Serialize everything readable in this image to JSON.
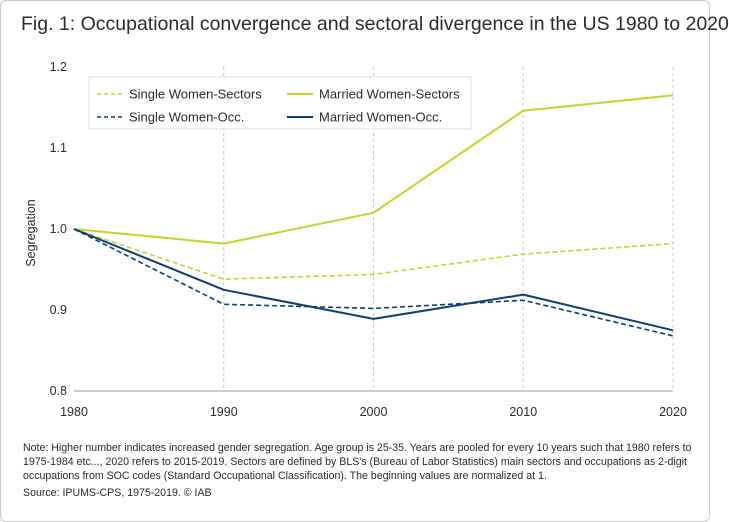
{
  "title": "Fig. 1: Occupational convergence and sectoral divergence in the US 1980 to 2020",
  "note": "Note: Higher number indicates increased gender segregation. Age group is 25-35. Years are pooled for every 10 years such that 1980 refers to 1975-1984 etc..., 2020 refers to 2015-2019. Sectors are defined by BLS's (Bureau of Labor Statistics) main sectors and occupations as 2-digit occupations from SOC codes (Standard Occupational Classification). The beginning values are normalized at 1.",
  "source": "Source: IPUMS-CPS, 1975-2019. © IAB",
  "chart_data": {
    "type": "line",
    "title": "Fig. 1: Occupational convergence and sectoral divergence in the US 1980 to 2020",
    "xlabel": "",
    "ylabel": "Segregation",
    "x": [
      1980,
      1990,
      2000,
      2010,
      2020
    ],
    "x_tick_labels": [
      "1980",
      "1990",
      "2000",
      "2010",
      "2020"
    ],
    "ylim": [
      0.8,
      1.2
    ],
    "y_ticks": [
      0.8,
      0.9,
      1.0,
      1.1,
      1.2
    ],
    "y_tick_labels": [
      "0.8",
      "0.9",
      "1.0",
      "1.1",
      "1.2"
    ],
    "grid": "vertical dashed",
    "legend_position": "top-left",
    "series": [
      {
        "name": "Single Women-Sectors",
        "color": "#c8d22a",
        "style": "dashed",
        "values": [
          1.0,
          0.938,
          0.944,
          0.969,
          0.982
        ]
      },
      {
        "name": "Married Women-Sectors",
        "color": "#c8d22a",
        "style": "solid",
        "values": [
          1.0,
          0.982,
          1.02,
          1.146,
          1.165
        ]
      },
      {
        "name": "Single Women-Occ.",
        "color": "#0d3f73",
        "style": "dashed",
        "values": [
          1.0,
          0.907,
          0.902,
          0.912,
          0.868
        ]
      },
      {
        "name": "Married Women-Occ.",
        "color": "#0d3f73",
        "style": "solid",
        "values": [
          1.0,
          0.925,
          0.889,
          0.919,
          0.875
        ]
      }
    ]
  }
}
